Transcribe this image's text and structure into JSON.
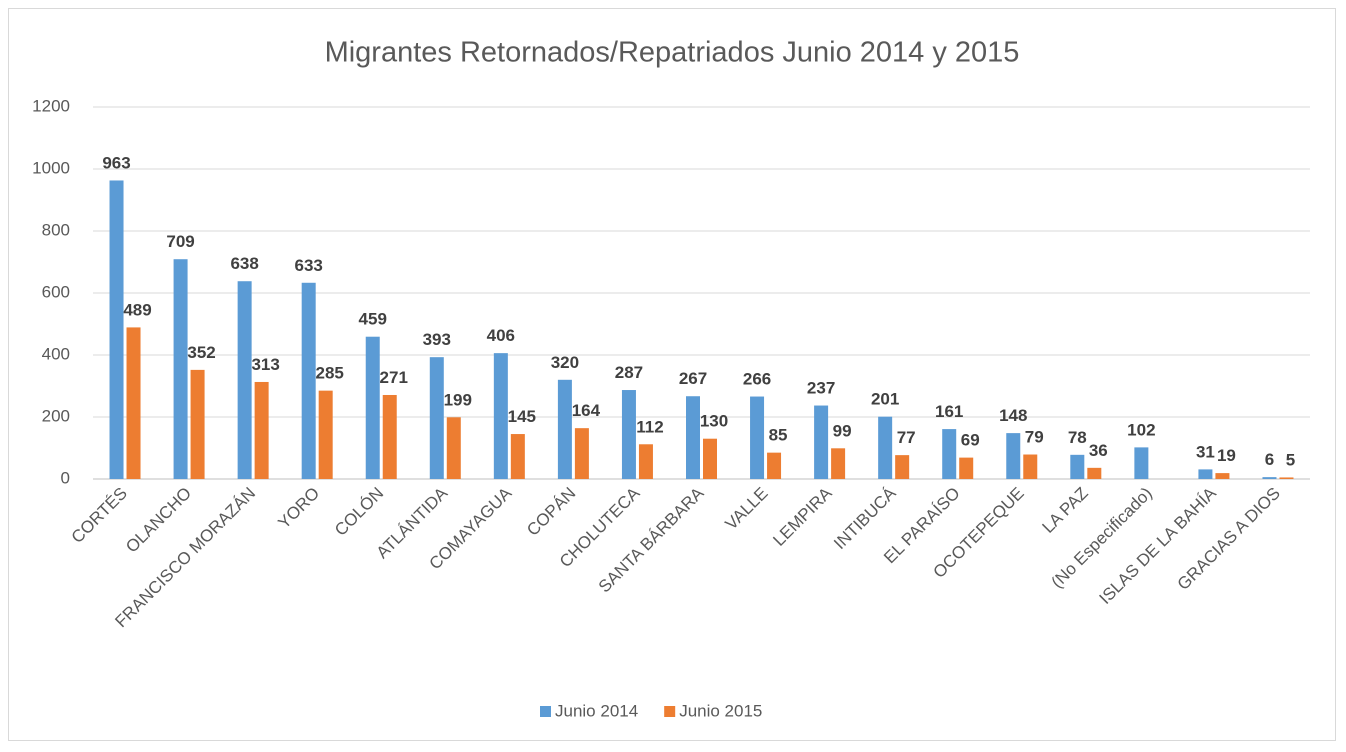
{
  "chart_data": {
    "type": "bar",
    "title": "Migrantes Retornados/Repatriados Junio 2014 y 2015",
    "categories": [
      "CORTÉS",
      "OLANCHO",
      "FRANCISCO MORAZÁN",
      "YORO",
      "COLÓN",
      "ATLÁNTIDA",
      "COMAYAGUA",
      "COPÁN",
      "CHOLUTECA",
      "SANTA BÁRBARA",
      "VALLE",
      "LEMPIRA",
      "INTIBUCÁ",
      "EL PARAÍSO",
      "OCOTEPEQUE",
      "LA PAZ",
      "(No Especificado)",
      "ISLAS DE LA BAHÍA",
      "GRACIAS A DIOS"
    ],
    "series": [
      {
        "name": "Junio 2014",
        "color": "#5b9bd5",
        "values": [
          963,
          709,
          638,
          633,
          459,
          393,
          406,
          320,
          287,
          267,
          266,
          237,
          201,
          161,
          148,
          78,
          102,
          31,
          6
        ]
      },
      {
        "name": "Junio 2015",
        "color": "#ed7d31",
        "values": [
          489,
          352,
          313,
          285,
          271,
          199,
          145,
          164,
          112,
          130,
          85,
          99,
          77,
          69,
          79,
          36,
          null,
          19,
          5
        ]
      }
    ],
    "ylim": [
      0,
      1200
    ],
    "yticks": [
      0,
      200,
      400,
      600,
      800,
      1000,
      1200
    ],
    "grid": true,
    "legend": "bottom"
  }
}
